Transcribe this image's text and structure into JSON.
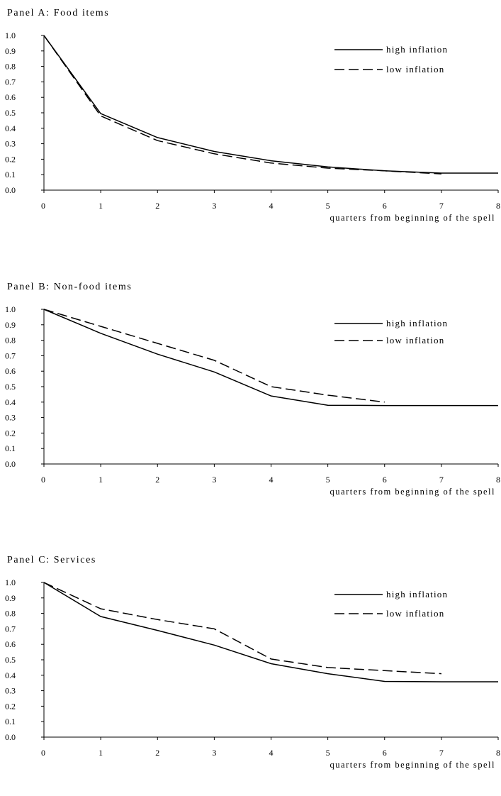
{
  "chart_data": [
    {
      "type": "line",
      "title": "Panel A: Food items",
      "xlabel": "quarters from beginning of the spell",
      "ylabel": "",
      "x": [
        0,
        1,
        2,
        3,
        4,
        5,
        6,
        7,
        8
      ],
      "xlim": [
        0,
        8
      ],
      "ylim": [
        0,
        1
      ],
      "x_ticks": [
        "0",
        "1",
        "2",
        "3",
        "4",
        "5",
        "6",
        "7",
        "8"
      ],
      "y_ticks": [
        "0.0",
        "0.1",
        "0.2",
        "0.3",
        "0.4",
        "0.5",
        "0.6",
        "0.7",
        "0.8",
        "0.9",
        "1.0"
      ],
      "grid": false,
      "legend_position": "top-right",
      "series": [
        {
          "name": "high inflation",
          "style": "solid",
          "values": [
            1.0,
            0.495,
            0.34,
            0.25,
            0.19,
            0.15,
            0.125,
            0.11,
            0.11
          ]
        },
        {
          "name": "low inflation",
          "style": "dashed",
          "values": [
            1.0,
            0.48,
            0.32,
            0.235,
            0.175,
            0.142,
            0.125,
            0.105,
            null
          ]
        }
      ]
    },
    {
      "type": "line",
      "title": "Panel B: Non-food items",
      "xlabel": "quarters from beginning of the spell",
      "ylabel": "",
      "x": [
        0,
        1,
        2,
        3,
        4,
        5,
        6,
        7,
        8
      ],
      "xlim": [
        0,
        8
      ],
      "ylim": [
        0,
        1
      ],
      "x_ticks": [
        "0",
        "1",
        "2",
        "3",
        "4",
        "5",
        "6",
        "7",
        "8"
      ],
      "y_ticks": [
        "0.0",
        "0.1",
        "0.2",
        "0.3",
        "0.4",
        "0.5",
        "0.6",
        "0.7",
        "0.8",
        "0.9",
        "1.0"
      ],
      "grid": false,
      "legend_position": "top-right",
      "series": [
        {
          "name": "high inflation",
          "style": "solid",
          "values": [
            1.0,
            0.845,
            0.71,
            0.595,
            0.44,
            0.38,
            0.378,
            0.378,
            0.378
          ]
        },
        {
          "name": "low inflation",
          "style": "dashed",
          "values": [
            1.0,
            0.89,
            0.78,
            0.67,
            0.5,
            0.445,
            0.4,
            null,
            null
          ]
        }
      ]
    },
    {
      "type": "line",
      "title": "Panel C: Services",
      "xlabel": "quarters from beginning of the spell",
      "ylabel": "",
      "x": [
        0,
        1,
        2,
        3,
        4,
        5,
        6,
        7,
        8
      ],
      "xlim": [
        0,
        8
      ],
      "ylim": [
        0,
        1
      ],
      "x_ticks": [
        "0",
        "1",
        "2",
        "3",
        "4",
        "5",
        "6",
        "7",
        "8"
      ],
      "y_ticks": [
        "0.0",
        "0.1",
        "0.2",
        "0.3",
        "0.4",
        "0.5",
        "0.6",
        "0.7",
        "0.8",
        "0.9",
        "1.0"
      ],
      "grid": false,
      "legend_position": "top-right",
      "series": [
        {
          "name": "high inflation",
          "style": "solid",
          "values": [
            1.0,
            0.78,
            0.69,
            0.595,
            0.475,
            0.41,
            0.36,
            0.358,
            0.358
          ]
        },
        {
          "name": "low inflation",
          "style": "dashed",
          "values": [
            1.0,
            0.83,
            0.76,
            0.7,
            0.505,
            0.45,
            0.43,
            0.41,
            null
          ]
        }
      ]
    }
  ]
}
